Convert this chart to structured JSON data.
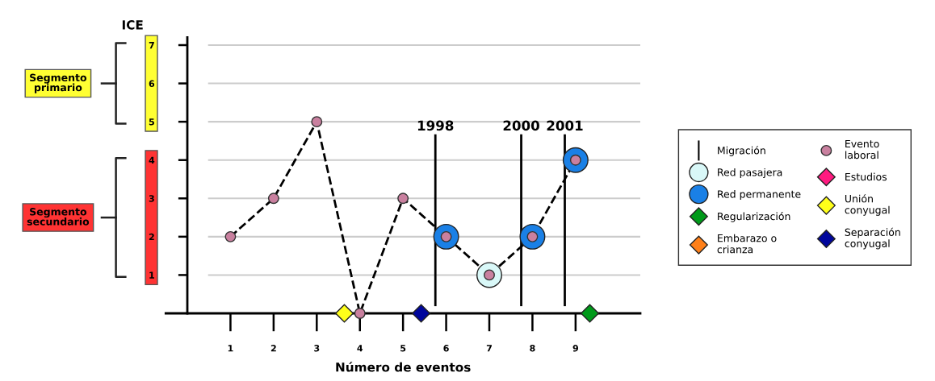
{
  "chart_data": {
    "type": "line",
    "xlabel": "Número de eventos",
    "ylabel": "ICE",
    "xlim": [
      -0.5,
      10.5
    ],
    "ylim": [
      0,
      7.2
    ],
    "xticks": [
      1,
      2,
      3,
      4,
      5,
      6,
      7,
      8,
      9
    ],
    "yticks": [
      1,
      2,
      3,
      4,
      5,
      6,
      7
    ],
    "grid": "y",
    "legend": "right",
    "ref_lines": [
      {
        "axis": "x",
        "value": 5.75,
        "color": "#000000"
      },
      {
        "axis": "x",
        "value": 7.74,
        "color": "#000000"
      },
      {
        "axis": "x",
        "value": 8.75,
        "color": "#000000"
      }
    ],
    "annotations": [
      "Segmento\nprimario",
      "Segmento\nsecundario",
      {
        "text": "1998",
        "x": 5.75,
        "y": 4.7
      },
      {
        "text": "2000",
        "x": 7.74,
        "y": 4.7
      },
      {
        "text": "2001",
        "x": 8.75,
        "y": 4.7
      }
    ],
    "series": [
      {
        "name": "Migración",
        "color": "#000000"
      },
      {
        "name": "Red pasajera",
        "type": "scatter",
        "marker": "circle",
        "color": "#d9f8f8",
        "x": [
          7
        ],
        "values": [
          1
        ]
      },
      {
        "name": "Red permanente",
        "type": "scatter",
        "marker": "circle",
        "color": "#1a80e6",
        "x": [
          6,
          8,
          9
        ],
        "values": [
          2,
          2,
          4
        ]
      },
      {
        "name": "Regularización",
        "type": "scatter",
        "marker": "diamond",
        "color": "#009a1a",
        "x": [
          9.33
        ],
        "values": [
          0
        ]
      },
      {
        "name": "Embarazo o\ncrianza",
        "type": "scatter",
        "marker": "diamond",
        "color": "#ff8019"
      },
      {
        "name": "Evento\nlaboral",
        "marker": "circle",
        "line_style": "dashed",
        "color": "#c9809f",
        "x": [
          1,
          2,
          3,
          4,
          5,
          6,
          7,
          8,
          9
        ],
        "values": [
          2,
          3,
          5,
          0,
          3,
          2,
          1,
          2,
          4
        ]
      },
      {
        "name": "Estudios",
        "type": "scatter",
        "marker": "diamond",
        "color": "#ff1a80"
      },
      {
        "name": "Unión\nconyugal",
        "type": "scatter",
        "marker": "diamond",
        "color": "#ffff1a",
        "x": [
          3.64
        ],
        "values": [
          0
        ]
      },
      {
        "name": "Separación\nconyugal",
        "type": "scatter",
        "marker": "diamond",
        "color": "#00069c",
        "x": [
          5.42
        ],
        "values": [
          0
        ]
      }
    ]
  }
}
